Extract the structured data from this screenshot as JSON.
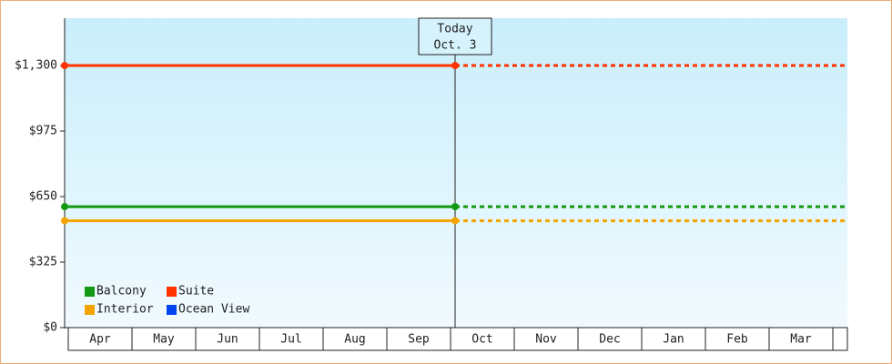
{
  "chart_data": {
    "type": "line",
    "categories": [
      "Apr",
      "May",
      "Jun",
      "Jul",
      "Aug",
      "Sep",
      "Oct",
      "Nov",
      "Dec",
      "Jan",
      "Feb",
      "Mar"
    ],
    "series": [
      {
        "name": "Balcony",
        "color": "#119911",
        "value": 600
      },
      {
        "name": "Suite",
        "color": "#ff3300",
        "value": 1300
      },
      {
        "name": "Interior",
        "color": "#f5a300",
        "value": 530
      },
      {
        "name": "Ocean View",
        "color": "#0044ee",
        "value": null
      }
    ],
    "ylim": [
      0,
      1535
    ],
    "yticks": [
      {
        "value": 0,
        "label": "$0"
      },
      {
        "value": 325,
        "label": "$325"
      },
      {
        "value": 650,
        "label": "$650"
      },
      {
        "value": 975,
        "label": "$975"
      },
      {
        "value": 1300,
        "label": "$1,300"
      }
    ],
    "annotation": {
      "title": "Today",
      "date": "Oct. 3"
    }
  }
}
